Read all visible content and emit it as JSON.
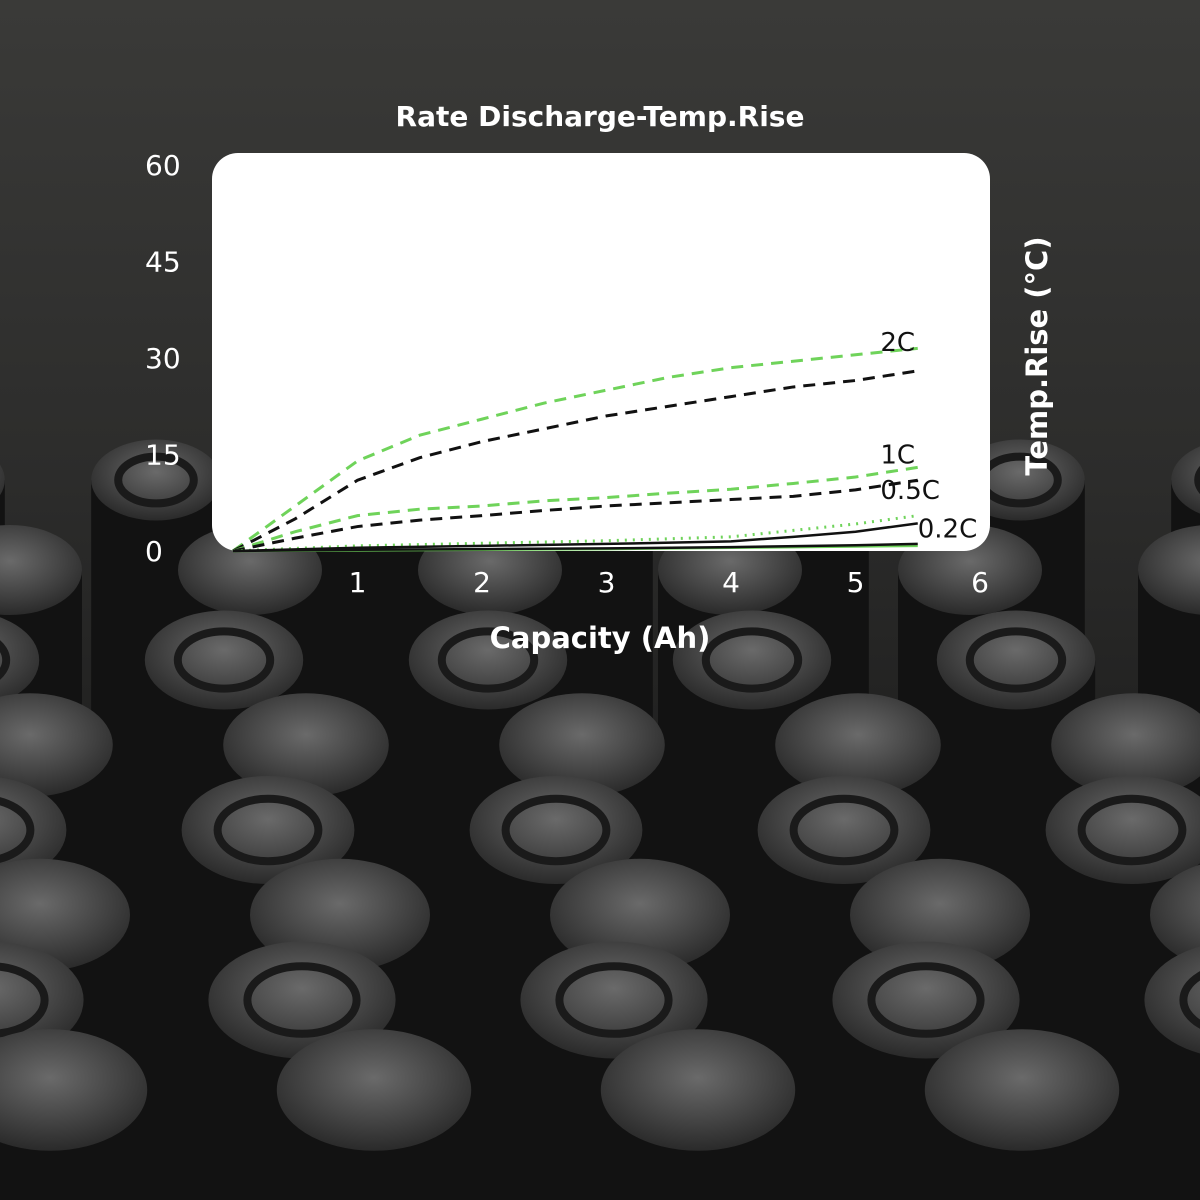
{
  "colors": {
    "background": "#2b2b2b",
    "plot_area": "#ffffff",
    "series_green": "#6fd35a",
    "series_black": "#111111",
    "text": "#ffffff"
  },
  "chart_data": {
    "type": "line",
    "title": "Rate Discharge-Temp.Rise",
    "xlabel": "Capacity (Ah)",
    "ylabel": "Temp.Rise (°C)",
    "xlim": [
      0,
      6
    ],
    "ylim": [
      0,
      60
    ],
    "x_ticks": [
      "1",
      "2",
      "3",
      "4",
      "5",
      "6"
    ],
    "y_ticks": [
      "0",
      "15",
      "30",
      "45",
      "60"
    ],
    "y_axis_side": "left",
    "ylabel_side": "right",
    "grid": false,
    "legend": "none",
    "series_labels": [
      {
        "text": "2C",
        "x": 5.2,
        "y": 32.5
      },
      {
        "text": "1C",
        "x": 5.2,
        "y": 15.0
      },
      {
        "text": "0.5C",
        "x": 5.2,
        "y": 9.5
      },
      {
        "text": "0.2C",
        "x": 5.5,
        "y": 3.5
      }
    ],
    "series": [
      {
        "rate": "2C",
        "color": "#6fd35a",
        "style": "dashed",
        "x": [
          0,
          0.5,
          1,
          1.5,
          2,
          2.5,
          3,
          3.5,
          4,
          4.5,
          5,
          5.5
        ],
        "y": [
          0,
          7,
          14,
          18,
          20.5,
          23,
          25,
          27,
          28.5,
          29.5,
          30.5,
          31.5
        ]
      },
      {
        "rate": "2C",
        "color": "#111111",
        "style": "dashed",
        "x": [
          0,
          0.5,
          1,
          1.5,
          2,
          2.5,
          3,
          3.5,
          4,
          4.5,
          5,
          5.5
        ],
        "y": [
          0,
          5,
          11,
          14.5,
          17,
          19,
          21,
          22.5,
          24,
          25.5,
          26.5,
          28
        ]
      },
      {
        "rate": "1C",
        "color": "#6fd35a",
        "style": "dashed",
        "x": [
          0,
          0.5,
          1,
          1.5,
          2,
          2.5,
          3,
          3.5,
          4,
          4.5,
          5,
          5.5
        ],
        "y": [
          0,
          3,
          5.5,
          6.5,
          7,
          7.8,
          8.3,
          9,
          9.6,
          10.5,
          11.5,
          13
        ]
      },
      {
        "rate": "1C",
        "color": "#111111",
        "style": "dashed",
        "x": [
          0,
          0.5,
          1,
          1.5,
          2,
          2.5,
          3,
          3.5,
          4,
          4.5,
          5,
          5.5
        ],
        "y": [
          0,
          2,
          3.8,
          4.8,
          5.5,
          6.3,
          7,
          7.5,
          8,
          8.5,
          9.5,
          11
        ]
      },
      {
        "rate": "0.5C",
        "color": "#6fd35a",
        "style": "dotted",
        "x": [
          0,
          1,
          2,
          3,
          4,
          4.5,
          5,
          5.5
        ],
        "y": [
          0,
          0.8,
          1.2,
          1.6,
          2.2,
          3.2,
          4.2,
          5.5
        ]
      },
      {
        "rate": "0.5C",
        "color": "#111111",
        "style": "solid",
        "x": [
          0,
          1,
          2,
          3,
          4,
          4.5,
          5,
          5.5
        ],
        "y": [
          0,
          0.5,
          0.8,
          1.1,
          1.5,
          2.2,
          3,
          4.3
        ]
      },
      {
        "rate": "0.2C",
        "color": "#6fd35a",
        "style": "solid",
        "x": [
          0,
          1,
          2,
          3,
          4,
          5,
          5.5
        ],
        "y": [
          0,
          0.1,
          0.2,
          0.3,
          0.5,
          0.7,
          0.8
        ]
      },
      {
        "rate": "0.2C",
        "color": "#111111",
        "style": "solid",
        "x": [
          0,
          1,
          2,
          3,
          4,
          5,
          5.5
        ],
        "y": [
          0,
          0.2,
          0.3,
          0.4,
          0.6,
          0.9,
          1.1
        ]
      }
    ]
  }
}
